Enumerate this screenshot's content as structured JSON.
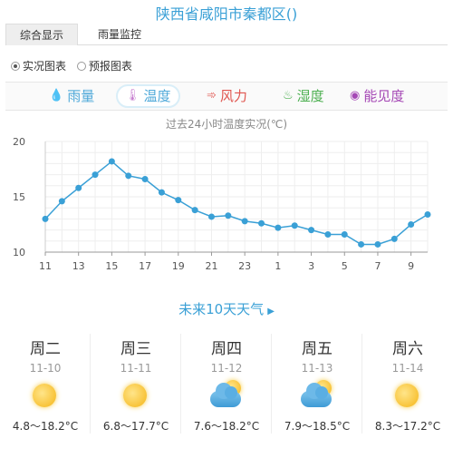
{
  "header": {
    "title": "陕西省咸阳市秦都区()"
  },
  "tabs": [
    {
      "label": "综合显示",
      "active": true
    },
    {
      "label": "雨量监控",
      "active": false
    }
  ],
  "radios": [
    {
      "label": "实况图表",
      "checked": true
    },
    {
      "label": "预报图表",
      "checked": false
    }
  ],
  "metrics": [
    {
      "label": "雨量",
      "icon": "raindrop-icon",
      "color": "#4fa9d9",
      "active": false
    },
    {
      "label": "温度",
      "icon": "thermometer-icon",
      "color": "#4fa9d9",
      "active": true
    },
    {
      "label": "风力",
      "icon": "wind-icon",
      "color": "#e0554f",
      "active": false
    },
    {
      "label": "湿度",
      "icon": "humidity-drop-icon",
      "color": "#4caf50",
      "active": false
    },
    {
      "label": "能见度",
      "icon": "eye-icon",
      "color": "#a548b5",
      "active": false
    }
  ],
  "chart_data": {
    "type": "line",
    "title": "过去24小时温度实况(℃)",
    "x_tick_labels": [
      "11",
      "13",
      "15",
      "17",
      "19",
      "21",
      "23",
      "1",
      "3",
      "5",
      "7",
      "9"
    ],
    "x": [
      "11",
      "12",
      "13",
      "14",
      "15",
      "16",
      "17",
      "18",
      "19",
      "20",
      "21",
      "22",
      "23",
      "0",
      "1",
      "2",
      "3",
      "4",
      "5",
      "6",
      "7",
      "8",
      "9",
      "10"
    ],
    "values": [
      13.0,
      14.6,
      15.8,
      17.0,
      18.2,
      16.9,
      16.6,
      15.4,
      14.7,
      13.8,
      13.2,
      13.3,
      12.8,
      12.6,
      12.2,
      12.4,
      12.0,
      11.6,
      11.6,
      10.7,
      10.7,
      11.2,
      12.5,
      13.4
    ],
    "yticks": [
      10,
      15,
      20
    ],
    "ylim": [
      10,
      20
    ],
    "grid": true,
    "line_color": "#3aa0d6"
  },
  "forecast": {
    "heading": "未来10天天气",
    "days": [
      {
        "name": "周二",
        "date": "11-10",
        "weather_icon": "sunny-icon",
        "temp": "4.8～18.2°C"
      },
      {
        "name": "周三",
        "date": "11-11",
        "weather_icon": "sunny-icon",
        "temp": "6.8～17.7°C"
      },
      {
        "name": "周四",
        "date": "11-12",
        "weather_icon": "partly-cloudy-icon",
        "temp": "7.6～18.2°C"
      },
      {
        "name": "周五",
        "date": "11-13",
        "weather_icon": "partly-cloudy-icon",
        "temp": "7.9～18.5°C"
      },
      {
        "name": "周六",
        "date": "11-14",
        "weather_icon": "sunny-icon",
        "temp": "8.3～17.2°C"
      }
    ]
  }
}
